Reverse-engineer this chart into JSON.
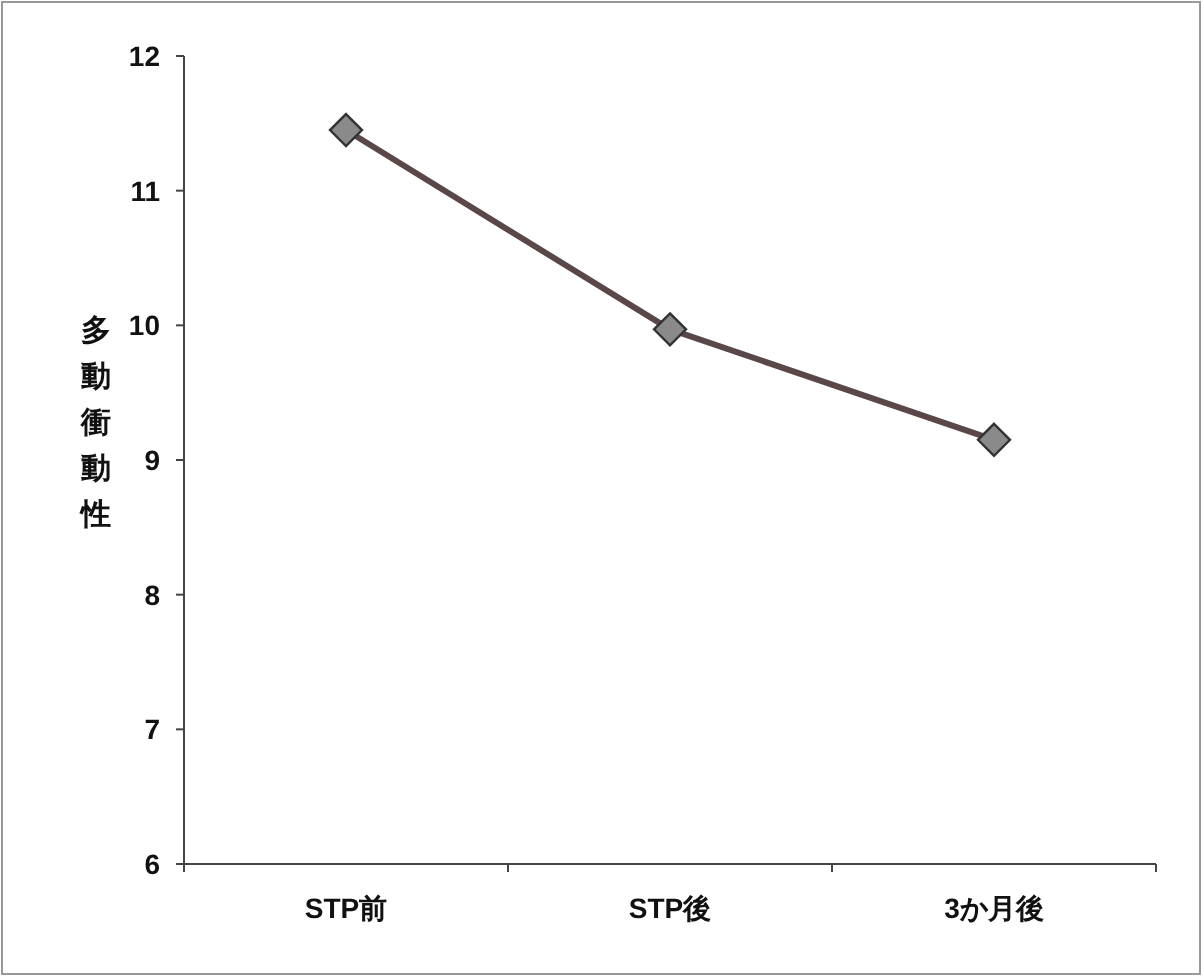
{
  "chart_data": {
    "type": "line",
    "ylabel": "多動衝動性",
    "categories": [
      "STP前",
      "STP後",
      "3か月後"
    ],
    "values": [
      11.45,
      9.97,
      9.15
    ],
    "color": "#5a4848",
    "marker": "diamond",
    "ylim": [
      6,
      12
    ],
    "yticks": [
      6,
      7,
      8,
      9,
      10,
      11,
      12
    ]
  }
}
